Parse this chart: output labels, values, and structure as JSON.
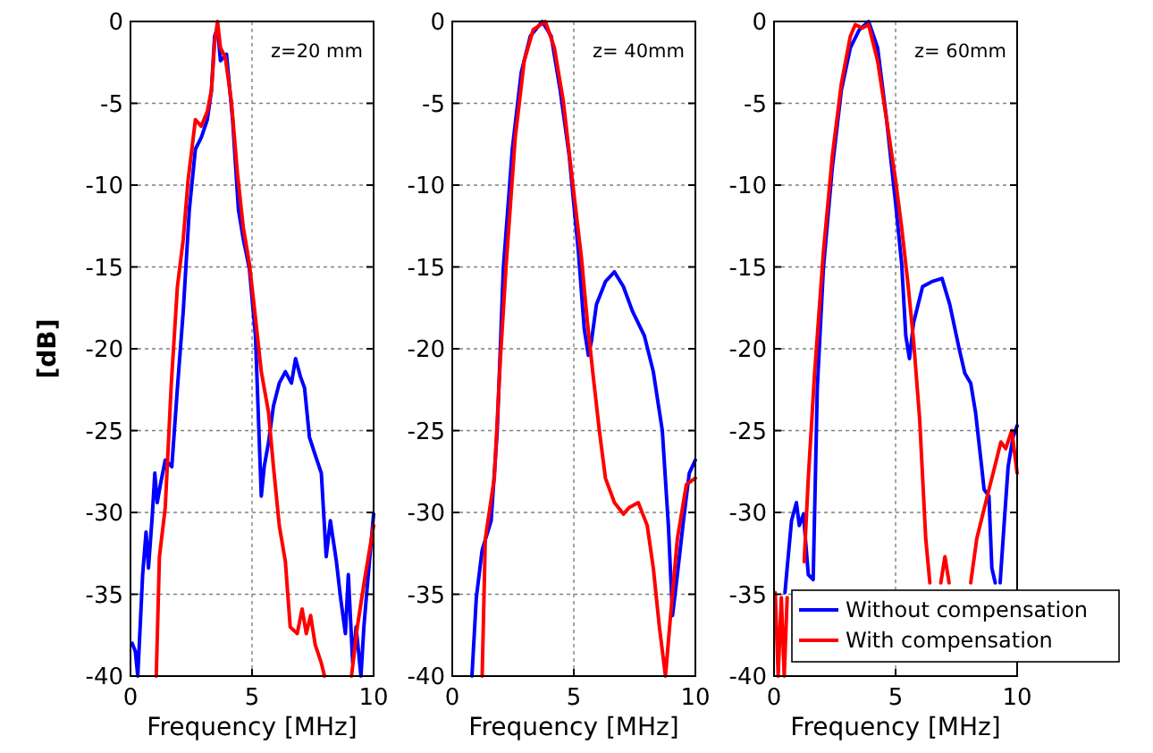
{
  "chart_data": [
    {
      "type": "line",
      "ylabel": "[dB]",
      "xlabel": "Frequency [MHz]",
      "annotations": [
        "z=20 mm"
      ],
      "xlim": [
        0,
        10
      ],
      "ylim": [
        -40,
        0
      ],
      "xticks": [
        0,
        5,
        10
      ],
      "yticks": [
        -40,
        -35,
        -30,
        -25,
        -20,
        -15,
        -10,
        -5,
        0
      ],
      "grid": true,
      "legend": false,
      "series": [
        {
          "color": "#0000ff",
          "x": [
            0.07,
            0.2,
            0.3,
            0.5,
            0.64,
            0.74,
            0.9,
            1.0,
            1.1,
            1.23,
            1.43,
            1.7,
            1.93,
            2.17,
            2.42,
            2.67,
            2.91,
            3.16,
            3.33,
            3.46,
            3.58,
            3.7,
            3.95,
            4.2,
            4.44,
            4.64,
            4.89,
            5.14,
            5.38,
            5.5,
            5.68,
            5.88,
            6.12,
            6.37,
            6.62,
            6.79,
            6.99,
            7.16,
            7.36,
            7.6,
            7.85,
            8.05,
            8.22,
            8.47,
            8.64,
            8.84,
            8.96,
            9.14,
            9.28,
            9.48,
            9.6,
            9.7,
            10
          ],
          "values": [
            -38,
            -38.5,
            -40,
            -33.8,
            -31.2,
            -33.4,
            -30.1,
            -27.6,
            -29.4,
            -28.3,
            -26.8,
            -27.2,
            -22.4,
            -17.7,
            -11.5,
            -7.8,
            -7.1,
            -6,
            -4.2,
            -0.9,
            -0.4,
            -2.4,
            -2,
            -6,
            -11.5,
            -13.3,
            -15.1,
            -19.2,
            -29,
            -27.2,
            -25.7,
            -23.5,
            -22.1,
            -21.4,
            -22.1,
            -20.6,
            -21.7,
            -22.4,
            -25.4,
            -26.5,
            -27.6,
            -32.7,
            -30.5,
            -33,
            -35.2,
            -37.4,
            -33.8,
            -39.2,
            -37,
            -40,
            -37,
            -35.2,
            -30.1
          ]
        },
        {
          "color": "#ff0000",
          "x": [
            1.06,
            1.19,
            1.43,
            1.68,
            1.93,
            2.17,
            2.37,
            2.67,
            2.91,
            3.16,
            3.33,
            3.46,
            3.58,
            3.7,
            3.9,
            4.15,
            4.4,
            4.64,
            4.89,
            5.14,
            5.38,
            5.68,
            5.88,
            6.12,
            6.37,
            6.57,
            6.86,
            7.06,
            7.23,
            7.41,
            7.6,
            7.85,
            7.98,
            8.5,
            9.09,
            9.33,
            9.63,
            10
          ],
          "values": [
            -40,
            -32.7,
            -29.7,
            -22.1,
            -16.2,
            -13.3,
            -9.7,
            -6,
            -6.4,
            -5.5,
            -4.2,
            -1.3,
            0,
            -1.6,
            -2.2,
            -4.9,
            -9.3,
            -12.6,
            -14.8,
            -18.1,
            -21.4,
            -23.9,
            -27.2,
            -30.8,
            -33,
            -37,
            -37.4,
            -35.9,
            -37.4,
            -36.3,
            -38.1,
            -39.2,
            -40,
            null,
            -40,
            -37,
            -34.1,
            -30.8
          ]
        }
      ]
    },
    {
      "type": "line",
      "xlabel": "Frequency [MHz]",
      "annotations": [
        "z= 40mm"
      ],
      "xlim": [
        0,
        10
      ],
      "ylim": [
        -40,
        0
      ],
      "xticks": [
        0,
        5,
        10
      ],
      "yticks": [
        -40,
        -35,
        -30,
        -25,
        -20,
        -15,
        -10,
        -5,
        0
      ],
      "grid": true,
      "legend": false,
      "series": [
        {
          "color": "#0000ff",
          "x": [
            0.81,
            0.99,
            1.23,
            1.6,
            1.85,
            2.1,
            2.47,
            2.84,
            3.21,
            3.7,
            4.07,
            4.44,
            4.81,
            5.19,
            5.43,
            5.6,
            5.73,
            5.93,
            6.3,
            6.67,
            7.04,
            7.41,
            7.9,
            8.27,
            8.64,
            8.89,
            9.06,
            9.26,
            9.51,
            9.75,
            10
          ],
          "values": [
            -40,
            -35.2,
            -32.3,
            -30.5,
            -25,
            -15.1,
            -7.8,
            -3.1,
            -0.9,
            0,
            -0.9,
            -4.2,
            -8.2,
            -14.1,
            -18.8,
            -20.4,
            -19.5,
            -17.3,
            -15.9,
            -15.3,
            -16.2,
            -17.7,
            -19.2,
            -21.4,
            -25,
            -30.8,
            -36.3,
            -33.8,
            -30.5,
            -27.6,
            -26.8
          ]
        },
        {
          "color": "#ff0000",
          "x": [
            1.23,
            1.36,
            1.73,
            1.98,
            2.22,
            2.59,
            2.96,
            3.33,
            3.83,
            4.2,
            4.57,
            4.94,
            5.31,
            5.56,
            5.8,
            6.05,
            6.3,
            6.67,
            7.04,
            7.28,
            7.65,
            8.02,
            8.27,
            8.52,
            8.77,
            8.94,
            9.26,
            9.63,
            10
          ],
          "values": [
            -40,
            -31.6,
            -27.9,
            -20.6,
            -14.8,
            -7.1,
            -2.4,
            -0.5,
            0,
            -1.6,
            -4.9,
            -9.7,
            -14.4,
            -18.4,
            -21.7,
            -25,
            -27.9,
            -29.4,
            -30.1,
            -29.7,
            -29.4,
            -30.8,
            -33.4,
            -37,
            -40,
            -37,
            -31.6,
            -28.3,
            -27.9
          ]
        }
      ]
    },
    {
      "type": "line",
      "xlabel": "Frequency [MHz]",
      "annotations": [
        "z= 60mm"
      ],
      "xlim": [
        0,
        10
      ],
      "ylim": [
        -40,
        0
      ],
      "xticks": [
        0,
        5,
        10
      ],
      "yticks": [
        -40,
        -35,
        -30,
        -25,
        -20,
        -15,
        -10,
        -5,
        0
      ],
      "grid": true,
      "legend": "bottom right",
      "series": [
        {
          "name": "Without compensation",
          "color": "#0000ff",
          "x": [
            0.45,
            0.54,
            0.72,
            0.92,
            1.04,
            1.21,
            1.41,
            1.61,
            1.78,
            2.03,
            2.4,
            2.77,
            3.14,
            3.51,
            3.89,
            4.26,
            4.63,
            5.0,
            5.25,
            5.42,
            5.57,
            5.74,
            6.11,
            6.49,
            6.91,
            7.23,
            7.6,
            7.85,
            8.09,
            8.29,
            8.54,
            8.64,
            8.84,
            8.96,
            9.1,
            9.2,
            9.3,
            9.46,
            9.63,
            9.83,
            10
          ],
          "values": [
            -34.9,
            -33.4,
            -30.5,
            -29.4,
            -30.8,
            -30.1,
            -33.8,
            -34.1,
            -22.4,
            -15.1,
            -8.9,
            -4.2,
            -1.6,
            -0.5,
            0,
            -1.6,
            -6,
            -11.1,
            -14.8,
            -19.2,
            -20.6,
            -18.4,
            -16.2,
            -15.9,
            -15.7,
            -17.3,
            -19.9,
            -21.5,
            -22.1,
            -23.9,
            -27.2,
            -28.6,
            -29,
            -33.4,
            -34.3,
            null,
            -34.3,
            -30.8,
            -27.2,
            -25.4,
            -24.7
          ]
        },
        {
          "name": "With compensation",
          "color": "#ff0000",
          "x": [
            0.05,
            0.17,
            0.3,
            0.42,
            0.54,
            0.9,
            1.24,
            1.41,
            1.66,
            2.03,
            2.4,
            2.77,
            3.14,
            3.34,
            3.64,
            3.89,
            4.26,
            4.63,
            5.0,
            5.25,
            5.5,
            5.74,
            5.99,
            6.24,
            6.41,
            6.6,
            6.86,
            7.03,
            7.2,
            7.6,
            8.09,
            8.34,
            8.59,
            8.84,
            9.08,
            9.33,
            9.53,
            9.78,
            10
          ],
          "values": [
            -34.9,
            -40,
            -35.2,
            -40,
            -35.2,
            null,
            -33,
            -27.9,
            -21.7,
            -14.1,
            -8.2,
            -3.8,
            -0.9,
            -0.2,
            -0.4,
            -0.2,
            -2.4,
            -6,
            -9.7,
            -12.6,
            -15.9,
            -19.5,
            -24.3,
            -31.6,
            -34.3,
            null,
            -34.3,
            -32.7,
            -34.3,
            null,
            -34.3,
            -31.6,
            -30.1,
            -28.6,
            -27.2,
            -25.7,
            -26.1,
            -25,
            -27.6
          ]
        }
      ]
    }
  ]
}
